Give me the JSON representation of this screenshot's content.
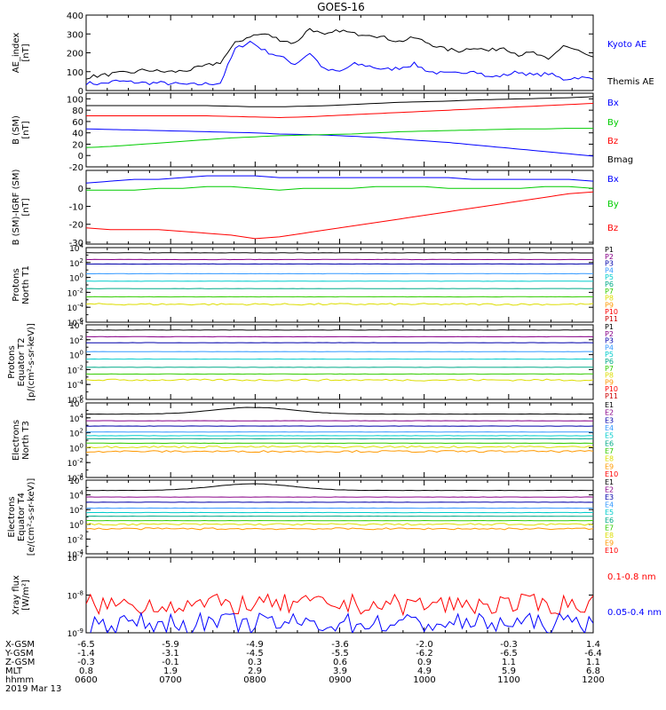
{
  "title": "GOES-16",
  "colors": {
    "black": "#000000",
    "blue": "#0000ff",
    "green": "#00cc00",
    "red": "#ff0000",
    "purple": "#880088",
    "navy": "#0000aa",
    "lightblue": "#3399ff",
    "cyan": "#00cccc",
    "teal": "#00aa88",
    "lime": "#33cc00",
    "yellow": "#dddd00",
    "orange": "#ff9900",
    "darkred": "#cc0000"
  },
  "chart_data": [
    {
      "type": "line",
      "ylabel": "AE_index\n[nT]",
      "ylim": [
        0,
        400
      ],
      "yticks": [
        "0",
        "100",
        "200",
        "300",
        "400"
      ],
      "series": [
        {
          "name": "Kyoto AE",
          "color": "blue",
          "values": [
            40,
            35,
            50,
            45,
            40,
            40,
            35,
            30,
            35,
            40,
            220,
            260,
            210,
            180,
            140,
            200,
            110,
            100,
            140,
            130,
            110,
            120,
            140,
            100,
            90,
            90,
            110,
            70,
            80,
            100,
            80,
            90,
            60,
            70,
            60
          ]
        },
        {
          "name": "Themis AE",
          "color": "black",
          "values": [
            70,
            80,
            90,
            95,
            110,
            100,
            100,
            110,
            130,
            150,
            250,
            290,
            300,
            270,
            250,
            330,
            290,
            320,
            300,
            300,
            280,
            260,
            280,
            250,
            220,
            210,
            230,
            210,
            230,
            190,
            200,
            160,
            240,
            210,
            170
          ]
        }
      ]
    },
    {
      "type": "line",
      "ylabel": "B (SM)\n[nT]",
      "ylim": [
        -20,
        110
      ],
      "yticks": [
        "-20",
        "0",
        "20",
        "40",
        "60",
        "80",
        "100"
      ],
      "series": [
        {
          "name": "Bx",
          "color": "blue",
          "values": [
            47,
            46,
            45,
            44,
            43,
            42,
            41,
            40,
            38,
            37,
            36,
            34,
            32,
            29,
            26,
            23,
            19,
            15,
            11,
            7,
            3,
            -1
          ]
        },
        {
          "name": "By",
          "color": "green",
          "values": [
            14,
            16,
            19,
            22,
            25,
            28,
            31,
            33,
            35,
            36,
            37,
            38,
            40,
            42,
            43,
            44,
            45,
            46,
            47,
            47,
            48,
            48
          ]
        },
        {
          "name": "Bz",
          "color": "red",
          "values": [
            70,
            70,
            70,
            70,
            70,
            70,
            69,
            68,
            67,
            68,
            70,
            72,
            74,
            76,
            78,
            80,
            82,
            84,
            86,
            88,
            90,
            92
          ]
        },
        {
          "name": "Bmag",
          "color": "black",
          "values": [
            88,
            88,
            88,
            88,
            88,
            88,
            87,
            86,
            86,
            87,
            88,
            90,
            92,
            94,
            95,
            96,
            98,
            99,
            100,
            101,
            102,
            104
          ]
        }
      ]
    },
    {
      "type": "line",
      "ylabel": "B (SM)-IGRF (SM)\n[nT]",
      "ylim": [
        -31,
        10
      ],
      "yticks": [
        "-30",
        "-20",
        "-10",
        "0"
      ],
      "series": [
        {
          "name": "Bx",
          "color": "blue",
          "values": [
            3,
            4,
            5,
            5,
            6,
            7,
            7,
            7,
            6,
            6,
            6,
            6,
            6,
            6,
            6,
            6,
            5,
            5,
            5,
            5,
            5,
            4
          ]
        },
        {
          "name": "By",
          "color": "green",
          "values": [
            -1,
            -1,
            -1,
            0,
            0,
            1,
            1,
            0,
            -1,
            0,
            0,
            0,
            1,
            1,
            1,
            0,
            0,
            0,
            0,
            1,
            1,
            0
          ]
        },
        {
          "name": "Bz",
          "color": "red",
          "values": [
            -22,
            -23,
            -23,
            -23,
            -24,
            -25,
            -26,
            -28,
            -27,
            -25,
            -23,
            -21,
            -19,
            -17,
            -15,
            -13,
            -11,
            -9,
            -7,
            -5,
            -3,
            -2
          ]
        }
      ]
    },
    {
      "type": "line",
      "scale": "log",
      "ylabel": "Protons\nNorth T1",
      "yexp": [
        -6,
        4
      ],
      "yticks": [
        "10^4",
        "10^2",
        "10^0",
        "10^-2",
        "10^-4",
        "10^-6"
      ],
      "legend": [
        "P1",
        "P2",
        "P3",
        "P4",
        "P5",
        "P6",
        "P7",
        "P8",
        "P9",
        "P10",
        "P11"
      ],
      "series": [
        {
          "name": "P1",
          "color": "black",
          "log": 3.3
        },
        {
          "name": "P2",
          "color": "purple",
          "log": 2.4
        },
        {
          "name": "P3",
          "color": "navy",
          "log": 1.8
        },
        {
          "name": "P4",
          "color": "lightblue",
          "log": 0.5
        },
        {
          "name": "P5",
          "color": "cyan",
          "log": -0.5
        },
        {
          "name": "P6",
          "color": "teal",
          "log": -1.5
        },
        {
          "name": "P7",
          "color": "lime",
          "log": -2.6
        },
        {
          "name": "P8",
          "color": "yellow",
          "log": -3.6
        }
      ]
    },
    {
      "type": "line",
      "scale": "log",
      "ylabel": "Protons\nEquator T2\n[p/(cm²-s-sr-keV)]",
      "yexp": [
        -6,
        4
      ],
      "yticks": [
        "10^4",
        "10^2",
        "10^0",
        "10^-2",
        "10^-4",
        "10^-6"
      ],
      "legend": [
        "P1",
        "P2",
        "P3",
        "P4",
        "P5",
        "P6",
        "P7",
        "P8",
        "P9",
        "P10",
        "P11"
      ],
      "series": [
        {
          "name": "P1",
          "color": "black",
          "log": 3.3
        },
        {
          "name": "P2",
          "color": "purple",
          "log": 2.4
        },
        {
          "name": "P3",
          "color": "navy",
          "log": 1.6
        },
        {
          "name": "P4",
          "color": "lightblue",
          "log": 0.4
        },
        {
          "name": "P5",
          "color": "cyan",
          "log": -0.6
        },
        {
          "name": "P6",
          "color": "teal",
          "log": -1.7
        },
        {
          "name": "P7",
          "color": "lime",
          "log": -2.6
        },
        {
          "name": "P8",
          "color": "yellow",
          "log": -3.4
        }
      ]
    },
    {
      "type": "line",
      "scale": "log",
      "ylabel": "Electrons\nNorth T3",
      "yexp": [
        -4,
        6
      ],
      "yticks": [
        "10^6",
        "10^4",
        "10^2",
        "10^0",
        "10^-2",
        "10^-4"
      ],
      "legend": [
        "E1",
        "E2",
        "E3",
        "E4",
        "E5",
        "E6",
        "E7",
        "E8",
        "E9",
        "E10"
      ],
      "series": [
        {
          "name": "E1",
          "color": "black",
          "log": 4.5
        },
        {
          "name": "E2",
          "color": "purple",
          "log": 3.6
        },
        {
          "name": "E3",
          "color": "navy",
          "log": 2.9
        },
        {
          "name": "E4",
          "color": "lightblue",
          "log": 2.1
        },
        {
          "name": "E5",
          "color": "cyan",
          "log": 1.6
        },
        {
          "name": "E6",
          "color": "teal",
          "log": 1.2
        },
        {
          "name": "E7",
          "color": "lime",
          "log": 0.6
        },
        {
          "name": "E8",
          "color": "yellow",
          "log": 0.1
        },
        {
          "name": "E9",
          "color": "orange",
          "log": -0.5
        }
      ]
    },
    {
      "type": "line",
      "scale": "log",
      "ylabel": "Electrons\nEquator T4\n[e/(cm²-s-sr-keV)]",
      "yexp": [
        -4,
        6
      ],
      "yticks": [
        "10^6",
        "10^4",
        "10^2",
        "10^0",
        "10^-2",
        "10^-4"
      ],
      "legend": [
        "E1",
        "E2",
        "E3",
        "E4",
        "E5",
        "E6",
        "E7",
        "E8",
        "E9",
        "E10"
      ],
      "series": [
        {
          "name": "E1",
          "color": "black",
          "log": 4.6
        },
        {
          "name": "E2",
          "color": "purple",
          "log": 3.7
        },
        {
          "name": "E3",
          "color": "navy",
          "log": 3.0
        },
        {
          "name": "E4",
          "color": "lightblue",
          "log": 2.2
        },
        {
          "name": "E5",
          "color": "cyan",
          "log": 1.6
        },
        {
          "name": "E6",
          "color": "teal",
          "log": 1.1
        },
        {
          "name": "E7",
          "color": "lime",
          "log": 0.5
        },
        {
          "name": "E8",
          "color": "yellow",
          "log": 0.0
        },
        {
          "name": "E9",
          "color": "orange",
          "log": -0.6
        }
      ]
    },
    {
      "type": "line",
      "scale": "log",
      "ylabel": "Xray flux\n[W/m²]",
      "yexp": [
        -9,
        -7
      ],
      "yticks": [
        "10^-7",
        "10^-8",
        "10^-9"
      ],
      "series": [
        {
          "name": "0.1-0.8 nm",
          "color": "red",
          "log": -8.25
        },
        {
          "name": "0.05-0.4 nm",
          "color": "blue",
          "log": -8.75
        }
      ]
    }
  ],
  "xaxis": {
    "rows": [
      {
        "label": "X-GSM",
        "values": [
          "-6.5",
          "-5.9",
          "-4.9",
          "-3.6",
          "-2.0",
          "-0.3",
          "1.4"
        ]
      },
      {
        "label": "Y-GSM",
        "values": [
          "-1.4",
          "-3.1",
          "-4.5",
          "-5.5",
          "-6.2",
          "-6.5",
          "-6.4"
        ]
      },
      {
        "label": "Z-GSM",
        "values": [
          "-0.3",
          "-0.1",
          "0.3",
          "0.6",
          "0.9",
          "1.1",
          "1.1"
        ]
      },
      {
        "label": "MLT",
        "values": [
          "0.8",
          "1.9",
          "2.9",
          "3.9",
          "4.9",
          "5.9",
          "6.8"
        ]
      },
      {
        "label": "hhmm",
        "values": [
          "0600",
          "0700",
          "0800",
          "0900",
          "1000",
          "1100",
          "1200"
        ]
      }
    ],
    "date": "2019 Mar 13"
  }
}
